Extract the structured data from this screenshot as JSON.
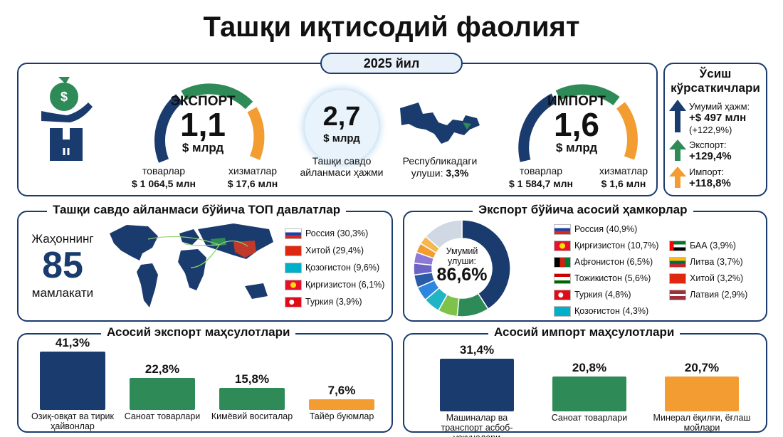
{
  "title": "Ташқи иқтисодий фаолият",
  "year": "2025 йил",
  "colors": {
    "navy": "#1a3b6e",
    "green": "#2e8b57",
    "orange": "#f39c32",
    "blue": "#2e86de"
  },
  "export_gauge": {
    "label": "ЭКСПОРТ",
    "value": "1,1",
    "unit": "$ млрд",
    "goods_label": "товарлар",
    "goods_value": "$ 1 064,5 млн",
    "services_label": "хизматлар",
    "services_value": "$ 17,6 млн"
  },
  "import_gauge": {
    "label": "ИМПОРТ",
    "value": "1,6",
    "unit": "$ млрд",
    "goods_label": "товарлар",
    "goods_value": "$ 1 584,7 млн",
    "services_label": "хизматлар",
    "services_value": "$ 1,6 млн"
  },
  "turnover": {
    "value": "2,7",
    "unit": "$ млрд",
    "caption_1": "Ташқи савдо",
    "caption_2": "айланмаси ҳажми"
  },
  "republic_share": {
    "caption": "Республикадаги",
    "share_label": "улуши:",
    "share_value": "3,3%"
  },
  "growth": {
    "title_1": "Ўсиш",
    "title_2": "кўрсаткичлари",
    "total_label": "Умумий ҳажм:",
    "total_value": "+$ 497 млн",
    "total_pct": "(+122,9%)",
    "export_label": "Экспорт:",
    "export_value": "+129,4%",
    "import_label": "Импорт:",
    "import_value": "+118,8%"
  },
  "top_countries": {
    "title": "Ташқи савдо айланмаси бўйича ТОП давлатлар",
    "world_1": "Жаҳоннинг",
    "world_count": "85",
    "world_2": "мамлакати",
    "items": [
      {
        "label": "Россия (30,3%)",
        "flag": "russia"
      },
      {
        "label": "Хитой (29,4%)",
        "flag": "china"
      },
      {
        "label": "Қозоғистон (9,6%)",
        "flag": "kazakhstan"
      },
      {
        "label": "Қирғизистон (6,1%)",
        "flag": "kyrgyzstan"
      },
      {
        "label": "Туркия (3,9%)",
        "flag": "turkey"
      }
    ]
  },
  "export_partners": {
    "title": "Экспорт бўйича асосий ҳамкорлар",
    "center_label_1": "Умумий",
    "center_label_2": "улуши:",
    "center_value": "86,6%",
    "left": [
      {
        "label": "Россия (40,9%)",
        "flag": "russia"
      },
      {
        "label": "Қирғизистон (10,7%)",
        "flag": "kyrgyzstan"
      },
      {
        "label": "Афғонистон (6,5%)",
        "flag": "afghanistan"
      },
      {
        "label": "Тожикистон (5,6%)",
        "flag": "tajikistan"
      },
      {
        "label": "Туркия (4,8%)",
        "flag": "turkey"
      },
      {
        "label": "Қозоғистон (4,3%)",
        "flag": "kazakhstan"
      }
    ],
    "right": [
      {
        "label": "БАА (3,9%)",
        "flag": "uae"
      },
      {
        "label": "Литва (3,7%)",
        "flag": "lithuania"
      },
      {
        "label": "Хитой (3,2%)",
        "flag": "china"
      },
      {
        "label": "Латвия (2,9%)",
        "flag": "latvia"
      }
    ]
  },
  "chart_data": [
    {
      "type": "pie",
      "title": "Экспорт бўйича асосий ҳамкорлар",
      "categories": [
        "Россия",
        "Қирғизистон",
        "Афғонистон",
        "Тожикистон",
        "Туркия",
        "Қозоғистон",
        "БАА",
        "Литва",
        "Хитой",
        "Латвия"
      ],
      "values": [
        40.9,
        10.7,
        6.5,
        5.6,
        4.8,
        4.3,
        3.9,
        3.7,
        3.2,
        2.9
      ],
      "colors": [
        "#1a3b6e",
        "#2e8b57",
        "#7ec24a",
        "#1fb5c4",
        "#2e86de",
        "#2a5ba8",
        "#6c63c7",
        "#8e79d6",
        "#f39c32",
        "#f6b84e"
      ]
    },
    {
      "type": "bar",
      "title": "Асосий экспорт маҳсулотлари",
      "categories": [
        "Озиқ-овқат ва тирик ҳайвонлар",
        "Саноат товарлари",
        "Кимёвий воситалар",
        "Тайёр буюмлар"
      ],
      "values": [
        41.3,
        22.8,
        15.8,
        7.6
      ],
      "value_labels": [
        "41,3%",
        "22,8%",
        "15,8%",
        "7,6%"
      ],
      "colors": [
        "#1a3b6e",
        "#2e8b57",
        "#2e8b57",
        "#f39c32"
      ]
    },
    {
      "type": "bar",
      "title": "Асосий импорт маҳсулотлари",
      "categories": [
        "Машиналар ва транспорт асбоб-ускуналари",
        "Саноат товарлари",
        "Минерал ёқилғи, ёғлаш мойлари"
      ],
      "values": [
        31.4,
        20.8,
        20.7
      ],
      "value_labels": [
        "31,4%",
        "20,8%",
        "20,7%"
      ],
      "colors": [
        "#1a3b6e",
        "#2e8b57",
        "#f39c32"
      ]
    }
  ]
}
